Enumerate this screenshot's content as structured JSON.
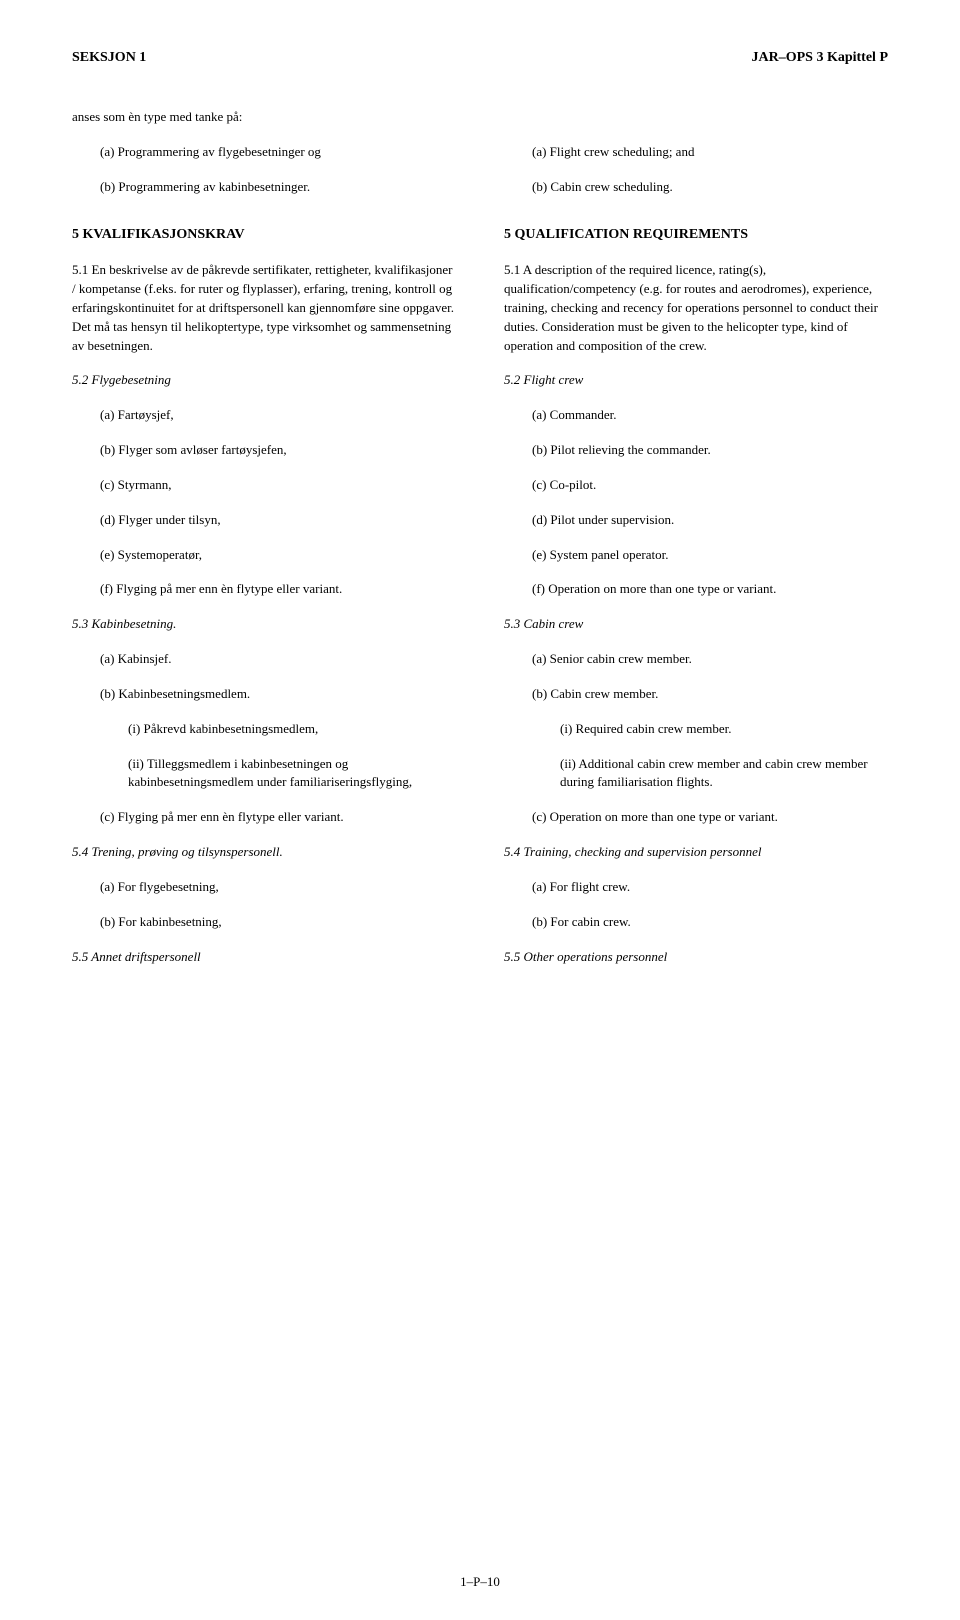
{
  "header": {
    "left": "SEKSJON 1",
    "right": "JAR–OPS 3 Kapittel P"
  },
  "left": {
    "intro": "anses som èn type med tanke på:",
    "intro_a": "(a)  Programmering av flygebesetninger og",
    "intro_b": "(b)  Programmering av kabinbesetninger.",
    "s5_head": "5     KVALIFIKASJONSKRAV",
    "s5_1": "5.1     En beskrivelse av de påkrevde sertifikater, rettigheter, kvalifikasjoner / kompetanse (f.eks. for ruter og flyplasser), erfaring, trening, kontroll og erfaringskontinuitet for at driftspersonell kan gjennomføre sine oppgaver. Det må tas hensyn til helikoptertype, type virksomhet og sammensetning av besetningen.",
    "s5_2_head": "5.2     Flygebesetning",
    "s5_2_a": "(a)  Fartøysjef,",
    "s5_2_b": "(b)  Flyger som avløser fartøysjefen,",
    "s5_2_c": "(c)  Styrmann,",
    "s5_2_d": "(d)  Flyger under tilsyn,",
    "s5_2_e": "(e)  Systemoperatør,",
    "s5_2_f": "(f)  Flyging på mer enn èn flytype eller variant.",
    "s5_3_head": "5.3     Kabinbesetning.",
    "s5_3_a": "(a)  Kabinsjef.",
    "s5_3_b": "(b)  Kabinbesetningsmedlem.",
    "s5_3_b_i": "(i)   Påkrevd kabinbesetningsmedlem,",
    "s5_3_b_ii": "(ii)  Tilleggsmedlem i kabinbesetningen og kabinbesetningsmedlem under familiariseringsflyging,",
    "s5_3_c": "(c)  Flyging på mer enn èn flytype eller variant.",
    "s5_4_head": "5.4     Trening, prøving og tilsynspersonell.",
    "s5_4_a": "(a)  For flygebesetning,",
    "s5_4_b": "(b)  For kabinbesetning,",
    "s5_5_head": "5.5     Annet driftspersonell"
  },
  "right": {
    "intro_a": "(a)  Flight crew scheduling; and",
    "intro_b": "(b)  Cabin crew scheduling.",
    "s5_head": "5     QUALIFICATION REQUIREMENTS",
    "s5_1": "5.1     A description of the required licence, rating(s), qualification/competency (e.g. for routes and aerodromes), experience, training, checking and recency for operations personnel to conduct their duties. Consideration must be given to the helicopter type, kind of operation and composition of the crew.",
    "s5_2_head": "5.2     Flight crew",
    "s5_2_a": "(a)  Commander.",
    "s5_2_b": "(b)  Pilot relieving the commander.",
    "s5_2_c": "(c)  Co-pilot.",
    "s5_2_d": "(d)  Pilot under supervision.",
    "s5_2_e": "(e)  System panel operator.",
    "s5_2_f": "(f)  Operation on more than one type or variant.",
    "s5_3_head": "5.3     Cabin crew",
    "s5_3_a": "(a)  Senior cabin crew member.",
    "s5_3_b": "(b)  Cabin crew member.",
    "s5_3_b_i": "(i)   Required cabin crew member.",
    "s5_3_b_ii": "(ii)  Additional cabin crew member and cabin crew member during familiarisation flights.",
    "s5_3_c": "(c)  Operation on more than one type or variant.",
    "s5_4_head": "5.4     Training, checking and supervision personnel",
    "s5_4_a": "(a)  For flight crew.",
    "s5_4_b": "(b)  For cabin crew.",
    "s5_5_head": "5.5     Other operations personnel"
  },
  "footer": "1–P–10"
}
